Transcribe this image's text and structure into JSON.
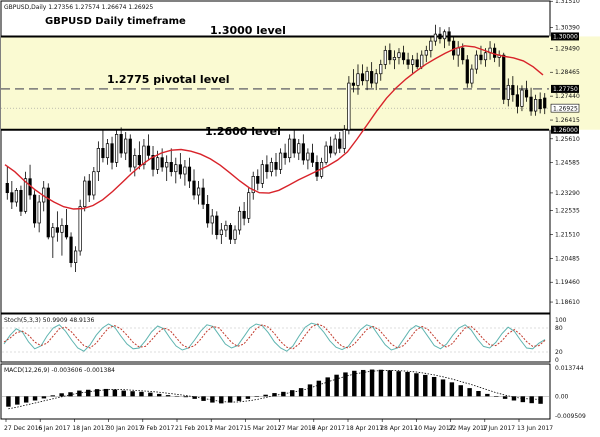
{
  "header": {
    "symbol_line": "GBPUSD,Daily  1.27356 1.27574 1.26674 1.26925",
    "title": "GBPUSD Daily timeframe"
  },
  "annotations": {
    "level_1": "1.3000 level",
    "level_2": "1.2775 pivotal level",
    "level_3": "1.2600 level"
  },
  "colors": {
    "zone_fill": "#fafad2",
    "ma_line": "#d8232a",
    "stoch_main": "#5fb4b0",
    "stoch_signal": "#c0392b",
    "macd_hist": "#000000",
    "macd_signal": "#000000",
    "candle_bull": "#ffffff",
    "candle_bear": "#000000"
  },
  "chart_data": [
    {
      "type": "candlestick",
      "panel": "price",
      "y_range": [
        1.1814,
        1.3152
      ],
      "y_ticks": [
        "1.31510",
        "1.30390",
        "1.29490",
        "1.28465",
        "1.27440",
        "1.26415",
        "1.25610",
        "1.24585",
        "1.23290",
        "1.22535",
        "1.21510",
        "1.20485",
        "1.19460",
        "1.18610"
      ],
      "x_labels": [
        "27 Dec 2016",
        "6 Jan 2017",
        "18 Jan 2017",
        "30 Jan 2017",
        "9 Feb 2017",
        "21 Feb 2017",
        "3 Mar 2017",
        "15 Mar 2017",
        "27 Mar 2017",
        "6 Apr 2017",
        "18 Apr 2017",
        "28 Apr 2017",
        "10 May 2017",
        "22 May 2017",
        "1 Jun 2017",
        "13 Jun 2017"
      ],
      "levels": [
        {
          "value": 1.3,
          "style": "solid",
          "tag": "1.30000"
        },
        {
          "value": 1.2775,
          "style": "dashed",
          "tag": "1.27750"
        },
        {
          "value": 1.26,
          "style": "solid",
          "tag": "1.26000"
        }
      ],
      "price_tag": "1.26925",
      "price_tag_value": 1.26925,
      "zone": {
        "from": 1.26,
        "to": 1.3,
        "from_bar": 0,
        "to_bar": 131
      },
      "ohlc": [
        [
          1.237,
          1.244,
          1.23,
          1.233
        ],
        [
          1.233,
          1.238,
          1.226,
          1.229
        ],
        [
          1.229,
          1.235,
          1.227,
          1.234
        ],
        [
          1.234,
          1.236,
          1.223,
          1.225
        ],
        [
          1.225,
          1.242,
          1.224,
          1.239
        ],
        [
          1.239,
          1.245,
          1.23,
          1.232
        ],
        [
          1.232,
          1.234,
          1.218,
          1.22
        ],
        [
          1.22,
          1.232,
          1.216,
          1.229
        ],
        [
          1.229,
          1.238,
          1.225,
          1.235
        ],
        [
          1.235,
          1.237,
          1.213,
          1.214
        ],
        [
          1.214,
          1.22,
          1.205,
          1.218
        ],
        [
          1.218,
          1.225,
          1.212,
          1.216
        ],
        [
          1.216,
          1.222,
          1.206,
          1.219
        ],
        [
          1.219,
          1.226,
          1.213,
          1.214
        ],
        [
          1.214,
          1.216,
          1.201,
          1.203
        ],
        [
          1.203,
          1.21,
          1.199,
          1.208
        ],
        [
          1.208,
          1.23,
          1.206,
          1.227
        ],
        [
          1.227,
          1.24,
          1.225,
          1.238
        ],
        [
          1.238,
          1.241,
          1.229,
          1.232
        ],
        [
          1.232,
          1.244,
          1.23,
          1.242
        ],
        [
          1.242,
          1.255,
          1.238,
          1.252
        ],
        [
          1.252,
          1.26,
          1.246,
          1.248
        ],
        [
          1.248,
          1.256,
          1.245,
          1.254
        ],
        [
          1.254,
          1.257,
          1.243,
          1.246
        ],
        [
          1.246,
          1.26,
          1.244,
          1.258
        ],
        [
          1.258,
          1.261,
          1.248,
          1.25
        ],
        [
          1.25,
          1.259,
          1.247,
          1.256
        ],
        [
          1.256,
          1.258,
          1.242,
          1.244
        ],
        [
          1.244,
          1.252,
          1.24,
          1.249
        ],
        [
          1.249,
          1.255,
          1.243,
          1.245
        ],
        [
          1.245,
          1.256,
          1.243,
          1.253
        ],
        [
          1.253,
          1.258,
          1.247,
          1.249
        ],
        [
          1.249,
          1.253,
          1.24,
          1.243
        ],
        [
          1.243,
          1.251,
          1.241,
          1.248
        ],
        [
          1.248,
          1.252,
          1.242,
          1.244
        ],
        [
          1.244,
          1.249,
          1.238,
          1.246
        ],
        [
          1.246,
          1.252,
          1.24,
          1.242
        ],
        [
          1.242,
          1.248,
          1.237,
          1.245
        ],
        [
          1.245,
          1.25,
          1.239,
          1.241
        ],
        [
          1.241,
          1.247,
          1.236,
          1.244
        ],
        [
          1.244,
          1.248,
          1.235,
          1.238
        ],
        [
          1.238,
          1.243,
          1.23,
          1.232
        ],
        [
          1.232,
          1.238,
          1.228,
          1.235
        ],
        [
          1.235,
          1.239,
          1.226,
          1.228
        ],
        [
          1.228,
          1.232,
          1.218,
          1.22
        ],
        [
          1.22,
          1.226,
          1.215,
          1.223
        ],
        [
          1.223,
          1.225,
          1.213,
          1.215
        ],
        [
          1.215,
          1.22,
          1.211,
          1.217
        ],
        [
          1.217,
          1.221,
          1.214,
          1.219
        ],
        [
          1.219,
          1.22,
          1.211,
          1.213
        ],
        [
          1.213,
          1.219,
          1.211,
          1.217
        ],
        [
          1.217,
          1.227,
          1.215,
          1.225
        ],
        [
          1.225,
          1.229,
          1.219,
          1.222
        ],
        [
          1.222,
          1.235,
          1.22,
          1.233
        ],
        [
          1.233,
          1.242,
          1.23,
          1.24
        ],
        [
          1.24,
          1.243,
          1.234,
          1.237
        ],
        [
          1.237,
          1.247,
          1.235,
          1.245
        ],
        [
          1.245,
          1.249,
          1.239,
          1.242
        ],
        [
          1.242,
          1.248,
          1.24,
          1.246
        ],
        [
          1.246,
          1.25,
          1.24,
          1.243
        ],
        [
          1.243,
          1.252,
          1.241,
          1.25
        ],
        [
          1.25,
          1.254,
          1.245,
          1.248
        ],
        [
          1.248,
          1.258,
          1.246,
          1.256
        ],
        [
          1.256,
          1.26,
          1.248,
          1.25
        ],
        [
          1.25,
          1.256,
          1.247,
          1.254
        ],
        [
          1.254,
          1.258,
          1.245,
          1.247
        ],
        [
          1.247,
          1.252,
          1.243,
          1.25
        ],
        [
          1.25,
          1.254,
          1.244,
          1.246
        ],
        [
          1.246,
          1.249,
          1.238,
          1.24
        ],
        [
          1.24,
          1.248,
          1.239,
          1.246
        ],
        [
          1.246,
          1.255,
          1.245,
          1.253
        ],
        [
          1.253,
          1.257,
          1.248,
          1.25
        ],
        [
          1.25,
          1.258,
          1.249,
          1.256
        ],
        [
          1.256,
          1.259,
          1.25,
          1.252
        ],
        [
          1.252,
          1.262,
          1.25,
          1.26
        ],
        [
          1.26,
          1.283,
          1.258,
          1.28
        ],
        [
          1.28,
          1.286,
          1.276,
          1.279
        ],
        [
          1.279,
          1.288,
          1.275,
          1.284
        ],
        [
          1.284,
          1.288,
          1.279,
          1.281
        ],
        [
          1.281,
          1.287,
          1.277,
          1.285
        ],
        [
          1.285,
          1.289,
          1.278,
          1.28
        ],
        [
          1.28,
          1.286,
          1.277,
          1.284
        ],
        [
          1.284,
          1.29,
          1.281,
          1.288
        ],
        [
          1.288,
          1.296,
          1.286,
          1.294
        ],
        [
          1.294,
          1.297,
          1.288,
          1.29
        ],
        [
          1.29,
          1.294,
          1.286,
          1.291
        ],
        [
          1.291,
          1.295,
          1.288,
          1.293
        ],
        [
          1.293,
          1.296,
          1.288,
          1.29
        ],
        [
          1.29,
          1.293,
          1.286,
          1.288
        ],
        [
          1.288,
          1.292,
          1.284,
          1.29
        ],
        [
          1.29,
          1.293,
          1.286,
          1.287
        ],
        [
          1.287,
          1.294,
          1.286,
          1.292
        ],
        [
          1.292,
          1.296,
          1.289,
          1.294
        ],
        [
          1.294,
          1.3,
          1.291,
          1.298
        ],
        [
          1.298,
          1.305,
          1.296,
          1.301
        ],
        [
          1.301,
          1.304,
          1.297,
          1.299
        ],
        [
          1.299,
          1.303,
          1.295,
          1.302
        ],
        [
          1.302,
          1.304,
          1.296,
          1.298
        ],
        [
          1.298,
          1.3,
          1.29,
          1.292
        ],
        [
          1.292,
          1.298,
          1.287,
          1.295
        ],
        [
          1.295,
          1.297,
          1.288,
          1.29
        ],
        [
          1.29,
          1.292,
          1.278,
          1.28
        ],
        [
          1.28,
          1.288,
          1.278,
          1.286
        ],
        [
          1.286,
          1.294,
          1.284,
          1.292
        ],
        [
          1.292,
          1.296,
          1.288,
          1.29
        ],
        [
          1.29,
          1.295,
          1.287,
          1.293
        ],
        [
          1.293,
          1.298,
          1.29,
          1.295
        ],
        [
          1.295,
          1.297,
          1.289,
          1.291
        ],
        [
          1.291,
          1.294,
          1.287,
          1.292
        ],
        [
          1.292,
          1.293,
          1.271,
          1.273
        ],
        [
          1.273,
          1.282,
          1.27,
          1.279
        ],
        [
          1.279,
          1.283,
          1.272,
          1.275
        ],
        [
          1.275,
          1.279,
          1.267,
          1.27
        ],
        [
          1.27,
          1.279,
          1.268,
          1.277
        ],
        [
          1.277,
          1.281,
          1.272,
          1.274
        ],
        [
          1.274,
          1.278,
          1.266,
          1.268
        ],
        [
          1.268,
          1.275,
          1.266,
          1.273
        ],
        [
          1.273,
          1.276,
          1.267,
          1.269
        ],
        [
          1.2736,
          1.2757,
          1.2667,
          1.2693
        ]
      ],
      "ma_period": 20,
      "ma_trend": [
        1.245,
        1.242,
        1.238,
        1.2345,
        1.2315,
        1.229,
        1.227,
        1.226,
        1.2262,
        1.2275,
        1.23,
        1.2335,
        1.2375,
        1.2415,
        1.245,
        1.248,
        1.25,
        1.2512,
        1.2515,
        1.2508,
        1.2495,
        1.2475,
        1.2448,
        1.2415,
        1.238,
        1.235,
        1.233,
        1.2328,
        1.234,
        1.2362,
        1.2385,
        1.2405,
        1.2425,
        1.2445,
        1.247,
        1.2505,
        1.256,
        1.262,
        1.268,
        1.2735,
        1.278,
        1.2818,
        1.285,
        1.288,
        1.2905,
        1.2928,
        1.2948,
        1.296,
        1.2955,
        1.294,
        1.2925,
        1.2915,
        1.2908,
        1.2895,
        1.287,
        1.2835
      ]
    },
    {
      "type": "line",
      "panel": "stochastic",
      "label": "Stoch(5,3,3) 50.9909 48.9136",
      "y_ticks": [
        "100",
        "80",
        "20",
        "0"
      ],
      "y_range": [
        0,
        100
      ],
      "series": [
        {
          "name": "%K",
          "values": [
            40,
            62,
            78,
            70,
            45,
            28,
            35,
            60,
            80,
            88,
            72,
            50,
            30,
            22,
            38,
            62,
            80,
            90,
            82,
            60,
            40,
            28,
            30,
            48,
            70,
            85,
            78,
            55,
            35,
            25,
            30,
            50,
            72,
            88,
            84,
            62,
            40,
            30,
            36,
            58,
            80,
            90,
            86,
            68,
            45,
            30,
            22,
            35,
            60,
            82,
            92,
            88,
            70,
            48,
            32,
            26,
            34,
            55,
            76,
            88,
            82,
            60,
            38,
            25,
            30,
            52,
            75,
            86,
            80,
            58,
            36,
            28,
            40,
            62,
            80,
            88,
            75,
            52,
            34,
            30,
            44,
            66,
            82,
            72,
            50,
            30,
            28,
            42,
            51
          ]
        },
        {
          "name": "%D",
          "values": [
            45,
            55,
            68,
            72,
            62,
            45,
            36,
            42,
            60,
            78,
            82,
            70,
            52,
            36,
            30,
            42,
            62,
            80,
            86,
            78,
            62,
            44,
            32,
            34,
            50,
            68,
            80,
            74,
            56,
            38,
            30,
            36,
            52,
            72,
            84,
            80,
            62,
            44,
            34,
            40,
            58,
            78,
            88,
            82,
            66,
            46,
            32,
            28,
            40,
            62,
            82,
            90,
            84,
            68,
            48,
            34,
            30,
            40,
            58,
            76,
            84,
            76,
            58,
            40,
            30,
            36,
            54,
            74,
            84,
            76,
            58,
            40,
            32,
            42,
            62,
            80,
            84,
            70,
            52,
            38,
            36,
            48,
            66,
            76,
            64,
            46,
            34,
            36,
            49
          ]
        }
      ]
    },
    {
      "type": "bar",
      "panel": "macd",
      "label": "MACD(12,26,9) -0.003606 -0.001384",
      "y_ticks": [
        "0.013744",
        "0.00",
        "-0.009509"
      ],
      "y_range": [
        -0.009509,
        0.013744
      ],
      "values": [
        -0.005,
        -0.004,
        -0.003,
        -0.002,
        -0.001,
        0.0005,
        0.0015,
        0.002,
        0.0028,
        0.0032,
        0.0035,
        0.0036,
        0.0033,
        0.0028,
        0.0025,
        0.0022,
        0.0018,
        0.0012,
        0.0006,
        0.0002,
        -0.0004,
        -0.0012,
        -0.0022,
        -0.003,
        -0.0034,
        -0.003,
        -0.0022,
        -0.0012,
        -0.0002,
        0.0008,
        0.0016,
        0.0022,
        0.003,
        0.004,
        0.0058,
        0.0076,
        0.0092,
        0.0105,
        0.0116,
        0.0124,
        0.0128,
        0.013,
        0.0129,
        0.0126,
        0.0122,
        0.0118,
        0.0112,
        0.0104,
        0.0094,
        0.0082,
        0.0068,
        0.0054,
        0.004,
        0.0026,
        0.0012,
        -0.0002,
        -0.0012,
        -0.002,
        -0.0028,
        -0.0033,
        -0.0036
      ],
      "signal": [
        -0.006,
        -0.0052,
        -0.0042,
        -0.0032,
        -0.0022,
        -0.0012,
        -0.0002,
        0.0008,
        0.0016,
        0.0022,
        0.0028,
        0.0032,
        0.0034,
        0.0033,
        0.003,
        0.0027,
        0.0024,
        0.002,
        0.0015,
        0.001,
        0.0004,
        -0.0003,
        -0.001,
        -0.0018,
        -0.0025,
        -0.0028,
        -0.0027,
        -0.0022,
        -0.0015,
        -0.0006,
        0.0004,
        0.0012,
        0.002,
        0.0028,
        0.004,
        0.0055,
        0.007,
        0.0084,
        0.0097,
        0.0108,
        0.0116,
        0.0122,
        0.0125,
        0.0126,
        0.0125,
        0.0122,
        0.0118,
        0.0112,
        0.0104,
        0.0095,
        0.0084,
        0.0072,
        0.006,
        0.0046,
        0.0032,
        0.0018,
        0.0006,
        -0.0004,
        -0.001,
        -0.0013,
        -0.0014
      ]
    }
  ]
}
